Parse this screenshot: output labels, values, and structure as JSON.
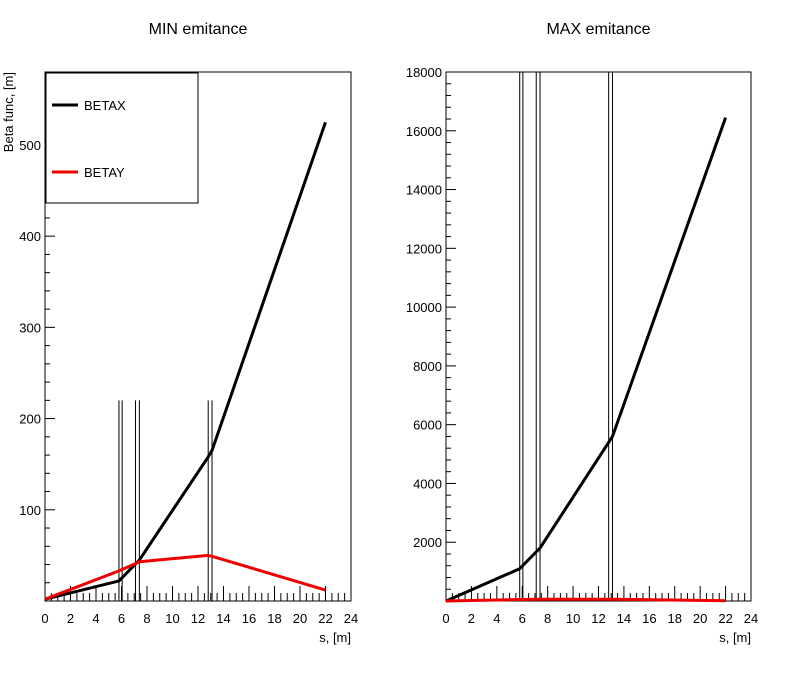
{
  "chart_data": [
    {
      "type": "line",
      "title": "MIN emitance",
      "xlabel": "s, [m]",
      "ylabel": "Beta func, [m]",
      "xlim": [
        0,
        24
      ],
      "ylim": [
        0,
        580
      ],
      "x_ticks": [
        0,
        2,
        4,
        6,
        8,
        10,
        12,
        14,
        16,
        18,
        20,
        22,
        24
      ],
      "y_ticks": [
        100,
        200,
        300,
        400,
        500
      ],
      "legend": {
        "placement": "top-left",
        "entries": [
          "BETAX",
          "BETAY"
        ]
      },
      "series": [
        {
          "name": "BETAX",
          "color": "#000000",
          "x": [
            0,
            5.8,
            7.4,
            12.8,
            13.1,
            22
          ],
          "y": [
            2,
            22,
            45,
            158,
            165,
            525
          ]
        },
        {
          "name": "BETAY",
          "color": "#ee0000",
          "x": [
            0,
            5.8,
            7.4,
            12.8,
            13.1,
            22
          ],
          "y": [
            2,
            33,
            43,
            50,
            49,
            12
          ]
        }
      ],
      "element_markers": [
        {
          "x": 0,
          "height": 220
        },
        {
          "x": 5.8,
          "height": 220
        },
        {
          "x": 6.05,
          "height": 220
        },
        {
          "x": 7.1,
          "height": 220
        },
        {
          "x": 7.4,
          "height": 220
        },
        {
          "x": 12.8,
          "height": 220
        },
        {
          "x": 13.1,
          "height": 220
        }
      ]
    },
    {
      "type": "line",
      "title": "MAX emitance",
      "xlabel": "s, [m]",
      "ylabel": "",
      "xlim": [
        0,
        24
      ],
      "ylim": [
        0,
        18000
      ],
      "x_ticks": [
        0,
        2,
        4,
        6,
        8,
        10,
        12,
        14,
        16,
        18,
        20,
        22,
        24
      ],
      "y_ticks": [
        2000,
        4000,
        6000,
        8000,
        10000,
        12000,
        14000,
        16000,
        18000
      ],
      "series": [
        {
          "name": "BETAX",
          "color": "#000000",
          "x": [
            0,
            5.8,
            7.4,
            12.8,
            13.1,
            22
          ],
          "y": [
            0,
            1100,
            1800,
            5400,
            5600,
            16450
          ]
        },
        {
          "name": "BETAY",
          "color": "#ee0000",
          "x": [
            0,
            5.8,
            7.4,
            12.8,
            13.1,
            22
          ],
          "y": [
            0,
            50,
            60,
            60,
            60,
            10
          ]
        }
      ],
      "element_markers": [
        {
          "x": 5.8,
          "height": 18000
        },
        {
          "x": 6.05,
          "height": 18000
        },
        {
          "x": 7.1,
          "height": 18000
        },
        {
          "x": 7.4,
          "height": 18000
        },
        {
          "x": 12.8,
          "height": 18000
        },
        {
          "x": 13.1,
          "height": 18000
        }
      ]
    }
  ]
}
